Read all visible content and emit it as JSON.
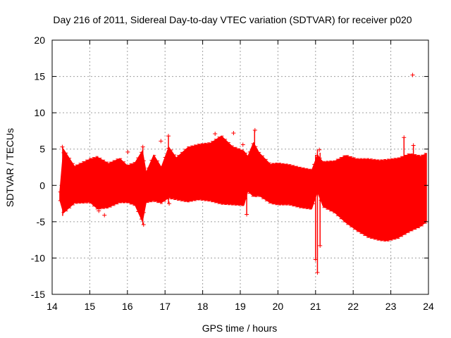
{
  "chart_data": {
    "type": "scatter",
    "title": "Day 216 of 2011, Sidereal Day-to-day VTEC variation (SDTVAR) for receiver p020",
    "xlabel": "GPS time / hours",
    "ylabel": "SDTVAR / TECUs",
    "xlim": [
      14,
      24
    ],
    "ylim": [
      -15,
      20
    ],
    "xticks": [
      "14",
      "15",
      "16",
      "17",
      "18",
      "19",
      "20",
      "21",
      "22",
      "23",
      "24"
    ],
    "yticks": [
      "-15",
      "-10",
      "-5",
      "0",
      "5",
      "10",
      "15",
      "20"
    ],
    "grid": true,
    "series_color": "#ff0000",
    "envelope": {
      "x": [
        14.2,
        14.3,
        14.6,
        15.0,
        15.2,
        15.5,
        15.8,
        16.0,
        16.2,
        16.4,
        16.5,
        16.7,
        16.9,
        17.1,
        17.3,
        17.6,
        17.9,
        18.2,
        18.5,
        18.8,
        19.1,
        19.2,
        19.35,
        19.5,
        19.8,
        20.0,
        20.3,
        20.6,
        20.9,
        21.05,
        21.2,
        21.5,
        21.8,
        22.1,
        22.4,
        22.7,
        22.9,
        23.2,
        23.5,
        23.8,
        23.95
      ],
      "upper": [
        -1.0,
        5.0,
        2.6,
        3.6,
        3.9,
        3.0,
        3.7,
        2.7,
        3.1,
        4.8,
        1.8,
        4.2,
        2.5,
        5.3,
        3.8,
        5.2,
        5.6,
        5.8,
        6.8,
        5.3,
        4.7,
        4.0,
        5.9,
        4.5,
        2.9,
        3.0,
        2.8,
        2.4,
        2.1,
        4.2,
        3.2,
        3.3,
        4.1,
        3.6,
        3.6,
        3.4,
        3.5,
        3.7,
        4.3,
        4.0,
        4.4
      ],
      "lower": [
        -2.0,
        -3.8,
        -2.4,
        -2.3,
        -3.2,
        -3.0,
        -2.3,
        -2.3,
        -2.7,
        -5.0,
        -2.3,
        -2.1,
        -2.4,
        -1.7,
        -1.9,
        -2.2,
        -1.9,
        -2.1,
        -2.5,
        -2.6,
        -2.7,
        -0.8,
        -1.5,
        -1.4,
        -2.4,
        -2.6,
        -2.6,
        -3.0,
        -3.2,
        -0.9,
        -2.9,
        -3.7,
        -5.1,
        -6.2,
        -7.1,
        -7.5,
        -7.6,
        -7.2,
        -6.3,
        -5.6,
        -5.0
      ]
    },
    "outliers": [
      {
        "x": 14.27,
        "y": 5.3
      },
      {
        "x": 15.24,
        "y": -3.5
      },
      {
        "x": 15.39,
        "y": -4.1
      },
      {
        "x": 16.01,
        "y": 4.6
      },
      {
        "x": 16.41,
        "y": 5.3
      },
      {
        "x": 16.43,
        "y": -5.4
      },
      {
        "x": 16.89,
        "y": 6.1
      },
      {
        "x": 17.09,
        "y": 6.8
      },
      {
        "x": 17.11,
        "y": -2.5
      },
      {
        "x": 18.33,
        "y": 7.1
      },
      {
        "x": 18.82,
        "y": 7.2
      },
      {
        "x": 19.07,
        "y": 5.6
      },
      {
        "x": 19.17,
        "y": -4.0
      },
      {
        "x": 19.22,
        "y": 3.6
      },
      {
        "x": 19.39,
        "y": 7.6
      },
      {
        "x": 21.0,
        "y": -10.2
      },
      {
        "x": 21.05,
        "y": -12.0
      },
      {
        "x": 21.1,
        "y": 4.9
      },
      {
        "x": 21.12,
        "y": -8.3
      },
      {
        "x": 23.35,
        "y": 6.6
      },
      {
        "x": 23.58,
        "y": 15.2
      },
      {
        "x": 23.6,
        "y": 5.5
      }
    ],
    "spikes": [
      {
        "x": 14.28,
        "top": 5.3,
        "bottom": -4.2
      },
      {
        "x": 16.41,
        "top": 5.3,
        "bottom": -5.4
      },
      {
        "x": 17.09,
        "top": 6.8,
        "bottom": -2.5
      },
      {
        "x": 19.17,
        "top": 4.0,
        "bottom": -4.0
      },
      {
        "x": 19.38,
        "top": 7.6,
        "bottom": -1.5
      },
      {
        "x": 21.0,
        "top": 4.2,
        "bottom": -10.2
      },
      {
        "x": 21.05,
        "top": 4.9,
        "bottom": -12.0
      },
      {
        "x": 21.12,
        "top": 4.5,
        "bottom": -8.3
      },
      {
        "x": 23.35,
        "top": 6.6,
        "bottom": -0.5
      },
      {
        "x": 23.6,
        "top": 5.5,
        "bottom": -0.8
      }
    ]
  }
}
